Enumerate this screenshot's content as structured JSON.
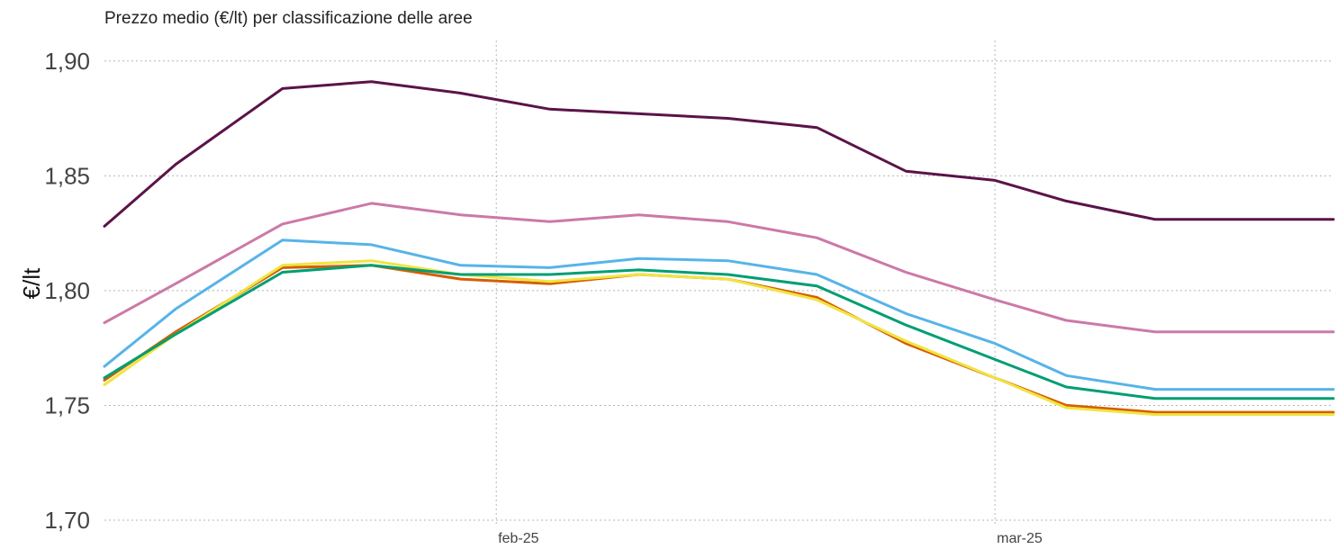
{
  "chart_data": {
    "type": "line",
    "title": "Prezzo medio (€/lt) per classificazione delle aree",
    "xlabel": "",
    "ylabel": "€/lt",
    "ylim": [
      1.7,
      1.905
    ],
    "yticks": [
      1.7,
      1.75,
      1.8,
      1.85,
      1.9
    ],
    "ytick_labels": [
      "1,70",
      "1,75",
      "1,80",
      "1,85",
      "1,90"
    ],
    "x": [
      "2025-01-10",
      "2025-01-14",
      "2025-01-20",
      "2025-01-25",
      "2025-01-30",
      "2025-02-04",
      "2025-02-09",
      "2025-02-14",
      "2025-02-19",
      "2025-02-24",
      "2025-03-01",
      "2025-03-05",
      "2025-03-10",
      "2025-03-15",
      "2025-03-20"
    ],
    "xlim": [
      "2025-01-10",
      "2025-03-20"
    ],
    "xticks": [
      {
        "value": "2025-02-01",
        "label": "feb-25"
      },
      {
        "value": "2025-03-01",
        "label": "mar-25"
      }
    ],
    "grid": true,
    "legend": "none",
    "series": [
      {
        "color": "#5b1348",
        "values": [
          1.828,
          1.855,
          1.888,
          1.891,
          1.886,
          1.879,
          1.877,
          1.875,
          1.871,
          1.852,
          1.848,
          1.839,
          1.831,
          1.831,
          1.831
        ]
      },
      {
        "color": "#cc79a7",
        "values": [
          1.786,
          1.803,
          1.829,
          1.838,
          1.833,
          1.83,
          1.833,
          1.83,
          1.823,
          1.808,
          1.796,
          1.787,
          1.782,
          1.782,
          1.782
        ]
      },
      {
        "color": "#56b4e9",
        "values": [
          1.767,
          1.792,
          1.822,
          1.82,
          1.811,
          1.81,
          1.814,
          1.813,
          1.807,
          1.79,
          1.777,
          1.763,
          1.757,
          1.757,
          1.757
        ]
      },
      {
        "color": "#d55e00",
        "values": [
          1.761,
          1.782,
          1.81,
          1.811,
          1.805,
          1.803,
          1.807,
          1.805,
          1.797,
          1.777,
          1.762,
          1.75,
          1.747,
          1.747,
          1.747
        ]
      },
      {
        "color": "#f0e442",
        "values": [
          1.759,
          1.781,
          1.811,
          1.813,
          1.807,
          1.804,
          1.807,
          1.805,
          1.796,
          1.778,
          1.762,
          1.749,
          1.746,
          1.746,
          1.746
        ]
      },
      {
        "color": "#009e73",
        "values": [
          1.762,
          1.781,
          1.808,
          1.811,
          1.807,
          1.807,
          1.809,
          1.807,
          1.802,
          1.785,
          1.77,
          1.758,
          1.753,
          1.753,
          1.753
        ]
      }
    ]
  }
}
